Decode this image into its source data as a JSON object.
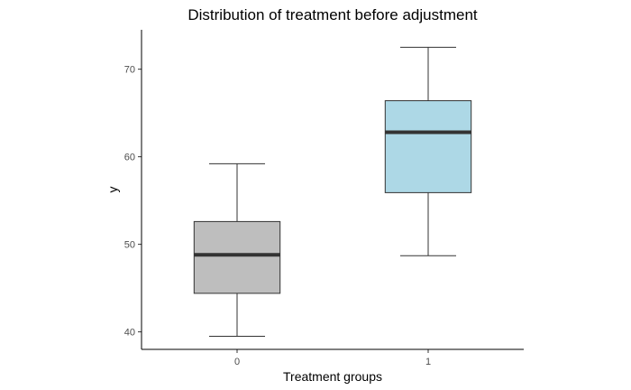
{
  "chart_data": {
    "type": "boxplot",
    "title": "Distribution of treatment before adjustment",
    "xlabel": "Treatment groups",
    "ylabel": "y",
    "categories": [
      "0",
      "1"
    ],
    "ylim": [
      38,
      74.5
    ],
    "yticks": [
      40,
      50,
      60,
      70
    ],
    "grid": false,
    "boxes": [
      {
        "category": "0",
        "whisker_low": 39.5,
        "q1": 44.4,
        "median": 48.8,
        "q3": 52.6,
        "whisker_high": 59.2,
        "fill": "#bebebe"
      },
      {
        "category": "1",
        "whisker_low": 48.7,
        "q1": 55.9,
        "median": 62.8,
        "q3": 66.4,
        "whisker_high": 72.5,
        "fill": "#add8e6"
      }
    ]
  }
}
